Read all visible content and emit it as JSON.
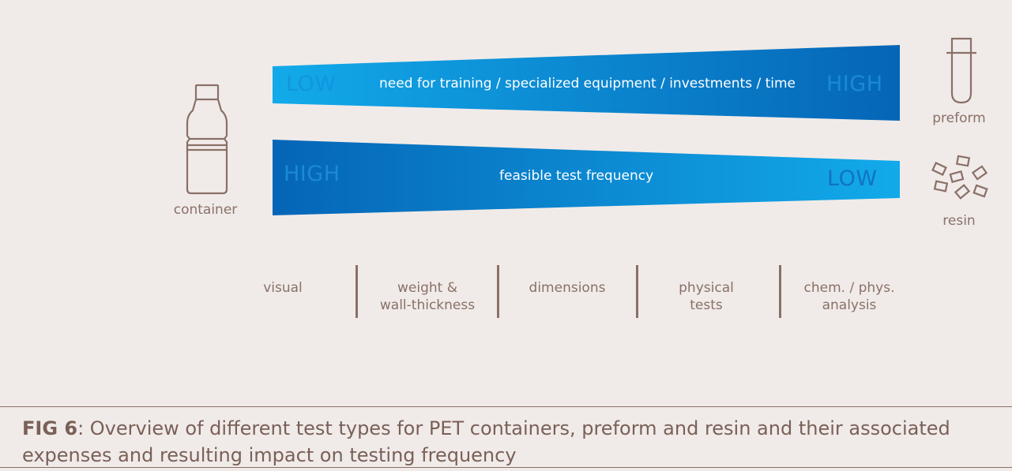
{
  "wedge_top": {
    "left_level": "LOW",
    "label": "need for training / specialized equipment / investments / time",
    "right_level": "HIGH"
  },
  "wedge_bottom": {
    "left_level": "HIGH",
    "label": "feasible test frequency",
    "right_level": "LOW"
  },
  "icons": {
    "container": {
      "label": "container",
      "icon": "bottle-icon"
    },
    "preform": {
      "label": "preform",
      "icon": "preform-icon"
    },
    "resin": {
      "label": "resin",
      "icon": "resin-pellets-icon"
    }
  },
  "categories": [
    {
      "line1": "visual",
      "line2": ""
    },
    {
      "line1": "weight &",
      "line2": "wall-thickness"
    },
    {
      "line1": "dimensions",
      "line2": ""
    },
    {
      "line1": "physical",
      "line2": "tests"
    },
    {
      "line1": "chem. / phys.",
      "line2": "analysis"
    }
  ],
  "caption": {
    "fig": "FIG 6",
    "text": ": Overview of different test types for PET containers, preform and resin and their associated expenses and resulting impact on testing frequency"
  },
  "colors": {
    "light_blue": "#12aaea",
    "dark_blue": "#0565b7",
    "text_brown": "#8a7068",
    "background": "#f0ebe8"
  }
}
